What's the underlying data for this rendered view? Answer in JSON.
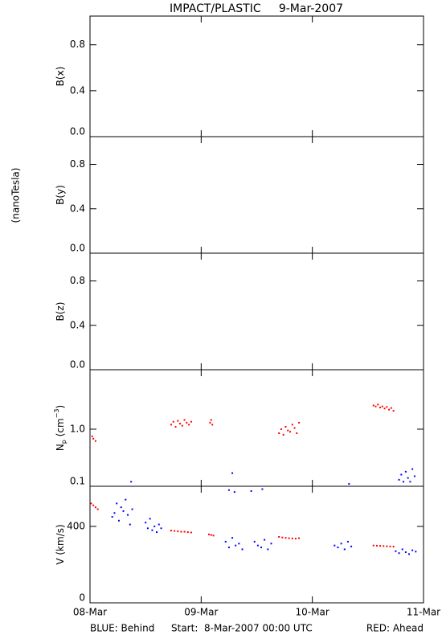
{
  "title": "IMPACT/PLASTIC     9-Mar-2007",
  "units_label": "(nanoTesla)",
  "footer": {
    "left": "BLUE: Behind",
    "center": "Start:  8-Mar-2007 00:00 UTC",
    "right": "RED: Ahead",
    "left_color": "#0000ff",
    "right_color": "#ff0000"
  },
  "chart_data": [
    {
      "type": "scatter",
      "y_label": [
        "B(x)"
      ],
      "ylim": [
        0,
        1.05
      ],
      "yticks": [
        {
          "value": 0,
          "label": "0.0"
        },
        0.4,
        0.8
      ],
      "series": []
    },
    {
      "type": "scatter",
      "y_label": [
        "B(y)"
      ],
      "ylim": [
        0,
        1.05
      ],
      "yticks": [
        {
          "value": 0,
          "label": "0.0"
        },
        0.4,
        0.8
      ],
      "series": []
    },
    {
      "type": "scatter",
      "y_label": [
        "B(z)"
      ],
      "ylim": [
        0,
        1.05
      ],
      "yticks": [
        {
          "value": 0,
          "label": "0.0"
        },
        0.4,
        0.8
      ],
      "series": []
    },
    {
      "type": "scatter",
      "y_label": [
        "N",
        "p",
        " (cm",
        "−3",
        ")"
      ],
      "log_scale": true,
      "ylim": [
        0.1,
        11
      ],
      "yticks": [
        0.1,
        {
          "value": 1,
          "label": "1.0"
        }
      ],
      "series": [
        {
          "color": "#ff0000",
          "x": [
            0.02,
            0.03,
            0.05,
            0.73,
            0.75,
            0.77,
            0.79,
            0.81,
            0.83,
            0.85,
            0.87,
            0.89,
            0.91,
            1.08,
            1.09,
            1.1,
            1.7,
            1.72,
            1.74,
            1.76,
            1.78,
            1.8,
            1.82,
            1.84,
            1.86,
            1.88,
            2.55,
            2.57,
            2.59,
            2.61,
            2.63,
            2.65,
            2.67,
            2.69,
            2.71,
            2.73
          ],
          "values": [
            0.75,
            0.68,
            0.62,
            1.2,
            1.35,
            1.1,
            1.4,
            1.25,
            1.15,
            1.45,
            1.3,
            1.2,
            1.35,
            1.3,
            1.45,
            1.2,
            0.85,
            1.0,
            0.8,
            1.1,
            0.95,
            0.9,
            1.2,
            1.05,
            0.85,
            1.3,
            2.6,
            2.5,
            2.7,
            2.4,
            2.5,
            2.3,
            2.45,
            2.2,
            2.35,
            2.1
          ]
        },
        {
          "color": "#0000ff",
          "x": [
            0.37,
            1.28,
            2.33,
            2.78,
            2.8,
            2.82,
            2.84,
            2.86,
            2.88,
            2.9,
            2.92
          ],
          "values": [
            0.12,
            0.17,
            0.11,
            0.13,
            0.16,
            0.12,
            0.18,
            0.14,
            0.12,
            0.2,
            0.15
          ]
        }
      ]
    },
    {
      "type": "scatter",
      "y_label": [
        "V (km/s)"
      ],
      "ylim": [
        0,
        610
      ],
      "yticks": [
        0,
        400
      ],
      "xlim": [
        0,
        3
      ],
      "xticks": [
        {
          "value": 0,
          "label": "08-Mar"
        },
        {
          "value": 1,
          "label": "09-Mar"
        },
        {
          "value": 2,
          "label": "10-Mar"
        },
        {
          "value": 3,
          "label": "11-Mar"
        }
      ],
      "series": [
        {
          "color": "#ff0000",
          "x": [
            0.01,
            0.03,
            0.05,
            0.07,
            0.73,
            0.76,
            0.79,
            0.82,
            0.85,
            0.88,
            0.91,
            1.07,
            1.09,
            1.11,
            1.7,
            1.73,
            1.76,
            1.79,
            1.82,
            1.85,
            1.88,
            2.55,
            2.58,
            2.61,
            2.64,
            2.67,
            2.7,
            2.73
          ],
          "values": [
            520,
            510,
            500,
            490,
            378,
            376,
            374,
            372,
            372,
            370,
            368,
            358,
            355,
            352,
            345,
            342,
            340,
            338,
            337,
            336,
            338,
            300,
            299,
            298,
            297,
            296,
            295,
            294
          ]
        },
        {
          "color": "#0000ff",
          "x": [
            0.2,
            0.22,
            0.24,
            0.26,
            0.28,
            0.3,
            0.32,
            0.34,
            0.36,
            0.38,
            0.5,
            0.52,
            0.54,
            0.56,
            0.58,
            0.6,
            0.62,
            0.64,
            1.22,
            1.25,
            1.28,
            1.31,
            1.34,
            1.37,
            1.25,
            1.3,
            1.48,
            1.51,
            1.54,
            1.57,
            1.6,
            1.63,
            1.45,
            1.55,
            2.2,
            2.23,
            2.26,
            2.29,
            2.32,
            2.35,
            2.75,
            2.78,
            2.81,
            2.84,
            2.87,
            2.9,
            2.93
          ],
          "values": [
            450,
            470,
            520,
            430,
            500,
            480,
            540,
            460,
            410,
            490,
            420,
            390,
            440,
            380,
            400,
            370,
            410,
            390,
            320,
            290,
            340,
            300,
            310,
            280,
            590,
            580,
            320,
            300,
            290,
            330,
            280,
            310,
            585,
            595,
            300,
            290,
            310,
            280,
            320,
            295,
            270,
            260,
            280,
            265,
            255,
            275,
            268
          ]
        }
      ]
    }
  ]
}
